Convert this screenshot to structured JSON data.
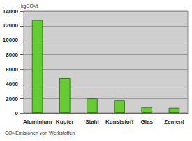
{
  "chart_data": {
    "type": "bar",
    "title": "CO²-Emisionen von Werkstoffen",
    "y_label": "kgCO²/t",
    "categories": [
      "Aluminium",
      "Kupfer",
      "Stahl",
      "Kunststoff",
      "Glas",
      "Zement"
    ],
    "values": [
      12800,
      4800,
      2000,
      1800,
      800,
      700
    ],
    "color": "#66cc33",
    "ylim": [
      0,
      14000
    ],
    "yticks": [
      0,
      2000,
      4000,
      6000,
      8000,
      10000,
      12000,
      14000
    ],
    "grid": true
  }
}
